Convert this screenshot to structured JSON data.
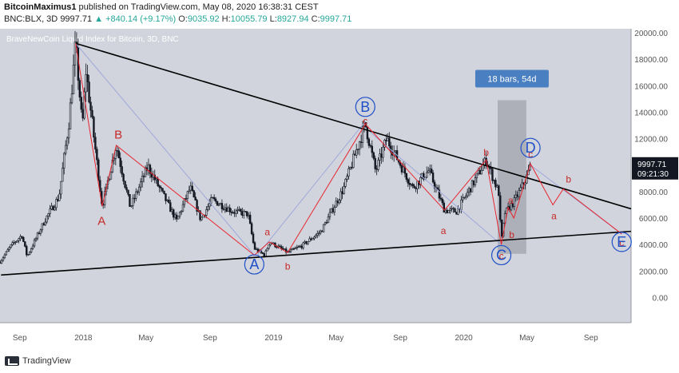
{
  "header": {
    "author": "BitcoinMaximus1",
    "published": "published on TradingView.com, May 08, 2020 16:38:31 CEST",
    "symbol": "BNC:BLX, 3D",
    "last": "9997.71",
    "change": "▲ +840.14 (+9.17%)",
    "o_label": "O:",
    "o_val": "9035.92",
    "h_label": "H:",
    "h_val": "10055.79",
    "l_label": "L:",
    "l_val": "8927.94",
    "c_label": "C:",
    "c_val": "9997.71"
  },
  "footer": {
    "brand": "TradingView",
    "logo_icon": "tradingview-logo-icon"
  },
  "colors": {
    "plot_bg": "#d1d4dc",
    "axis_bg": "#ffffff",
    "candle": "#131722",
    "wave": "#e8252f",
    "trendline": "#000000",
    "label_red": "#c62828",
    "label_blue": "#1e4fc7",
    "thin_line": "#9fa8da",
    "box_fill": "#9598a1",
    "badge_bg": "#4a7fc1",
    "last_price_bg": "#131722",
    "axis_text": "#555555"
  },
  "chart_data": {
    "type": "candlestick",
    "title": "BraveNewCoin Liquid Index for Bitcoin, 3D, BNC",
    "x_tick_labels": [
      "Sep",
      "2018",
      "May",
      "Sep",
      "2019",
      "May",
      "Sep",
      "2020",
      "May",
      "Sep"
    ],
    "x_ticks": [
      "2017-09-01",
      "2018-01-01",
      "2018-05-01",
      "2018-09-01",
      "2019-01-01",
      "2019-05-01",
      "2019-09-01",
      "2020-01-01",
      "2020-05-01",
      "2020-09-01"
    ],
    "xlim": [
      "2017-07-25",
      "2020-11-17"
    ],
    "y_ticks": [
      0,
      2000,
      4000,
      6000,
      8000,
      10000,
      12000,
      14000,
      16000,
      18000,
      20000
    ],
    "y_tick_labels": [
      "0.00",
      "2000.00",
      "4000.00",
      "6000.00",
      "8000.00",
      "10000.00",
      "12000.00",
      "14000.00",
      "16000.00",
      "18000.00",
      "20000.00"
    ],
    "ylim": [
      -1900,
      20300
    ],
    "price_path": [
      [
        "2017-07-25",
        2700
      ],
      [
        "2017-08-15",
        3900
      ],
      [
        "2017-09-05",
        4700
      ],
      [
        "2017-09-15",
        3100
      ],
      [
        "2017-10-20",
        5900
      ],
      [
        "2017-11-15",
        7600
      ],
      [
        "2017-12-05",
        13500
      ],
      [
        "2017-12-17",
        19200
      ],
      [
        "2017-12-30",
        12800
      ],
      [
        "2018-01-06",
        17100
      ],
      [
        "2018-02-06",
        6900
      ],
      [
        "2018-03-05",
        11500
      ],
      [
        "2018-04-01",
        6800
      ],
      [
        "2018-05-05",
        9900
      ],
      [
        "2018-06-29",
        5800
      ],
      [
        "2018-07-25",
        8300
      ],
      [
        "2018-08-14",
        5900
      ],
      [
        "2018-09-05",
        7400
      ],
      [
        "2018-10-15",
        6500
      ],
      [
        "2018-11-13",
        6300
      ],
      [
        "2018-11-25",
        3700
      ],
      [
        "2018-12-15",
        3200
      ],
      [
        "2018-12-24",
        4200
      ],
      [
        "2019-01-28",
        3400
      ],
      [
        "2019-02-24",
        3900
      ],
      [
        "2019-04-02",
        5000
      ],
      [
        "2019-05-15",
        8200
      ],
      [
        "2019-06-26",
        13100
      ],
      [
        "2019-07-16",
        9500
      ],
      [
        "2019-08-06",
        12000
      ],
      [
        "2019-09-25",
        8300
      ],
      [
        "2019-10-26",
        9600
      ],
      [
        "2019-11-25",
        6600
      ],
      [
        "2019-12-18",
        6500
      ],
      [
        "2020-01-20",
        8700
      ],
      [
        "2020-02-13",
        10400
      ],
      [
        "2020-03-08",
        7900
      ],
      [
        "2020-03-13",
        4200
      ],
      [
        "2020-03-20",
        6400
      ],
      [
        "2020-04-06",
        7200
      ],
      [
        "2020-04-30",
        9000
      ],
      [
        "2020-05-08",
        9997.71
      ]
    ],
    "trendlines": [
      {
        "from": [
          "2017-12-17",
          19200
        ],
        "to": [
          "2020-11-17",
          6700
        ]
      },
      {
        "from": [
          "2017-07-27",
          1700
        ],
        "to": [
          "2020-11-17",
          5000
        ]
      }
    ],
    "wave_path": [
      [
        "2017-12-17",
        19200
      ],
      [
        "2018-02-06",
        6900
      ],
      [
        "2018-03-05",
        11500
      ],
      [
        "2018-11-25",
        3200
      ],
      [
        "2018-12-24",
        4200
      ],
      [
        "2019-01-28",
        3400
      ],
      [
        "2019-06-26",
        13100
      ],
      [
        "2019-11-25",
        6600
      ],
      [
        "2020-02-13",
        10400
      ],
      [
        "2020-03-13",
        4000
      ],
      [
        "2020-03-26",
        6800
      ],
      [
        "2020-04-06",
        6000
      ],
      [
        "2020-05-08",
        10100
      ],
      [
        "2020-06-20",
        7000
      ],
      [
        "2020-07-10",
        8200
      ],
      [
        "2020-10-30",
        4800
      ]
    ],
    "thin_lines": [
      {
        "from": [
          "2017-12-17",
          19200
        ],
        "to": [
          "2018-11-25",
          3200
        ]
      },
      {
        "from": [
          "2018-12-01",
          3200
        ],
        "to": [
          "2019-06-26",
          13300
        ]
      },
      {
        "from": [
          "2019-07-05",
          12500
        ],
        "to": [
          "2020-03-13",
          4000
        ]
      },
      {
        "from": [
          "2020-05-08",
          10000
        ],
        "to": [
          "2020-10-30",
          4800
        ]
      }
    ],
    "range_box": {
      "from": "2020-03-06",
      "to": "2020-04-30",
      "ylim": [
        3300,
        14900
      ],
      "label": "18 bars, 54d"
    },
    "wave_labels_red": [
      {
        "text": "A",
        "at": [
          "2018-02-05",
          5800
        ]
      },
      {
        "text": "B",
        "at": [
          "2018-03-09",
          12300
        ]
      },
      {
        "text": "a",
        "at": [
          "2018-12-20",
          5000
        ]
      },
      {
        "text": "b",
        "at": [
          "2019-01-28",
          2400
        ]
      },
      {
        "text": "c",
        "at": [
          "2019-06-26",
          13400
        ]
      },
      {
        "text": "a",
        "at": [
          "2019-11-23",
          5100
        ]
      },
      {
        "text": "b",
        "at": [
          "2020-02-13",
          11000
        ]
      },
      {
        "text": "a",
        "at": [
          "2020-03-31",
          7400
        ]
      },
      {
        "text": "b",
        "at": [
          "2020-04-02",
          4800
        ]
      },
      {
        "text": "c",
        "at": [
          "2020-03-13",
          3200
        ]
      },
      {
        "text": "c",
        "at": [
          "2020-05-08",
          10900
        ]
      },
      {
        "text": "a",
        "at": [
          "2020-06-22",
          6200
        ]
      },
      {
        "text": "b",
        "at": [
          "2020-07-20",
          9000
        ]
      },
      {
        "text": "c",
        "at": [
          "2020-10-30",
          4200
        ]
      }
    ],
    "wave_labels_blue": [
      {
        "text": "A",
        "at": [
          "2018-11-25",
          2500
        ],
        "circle": true
      },
      {
        "text": "B",
        "at": [
          "2019-06-26",
          14400
        ],
        "circle": true
      },
      {
        "text": "C",
        "at": [
          "2020-03-13",
          3200
        ],
        "circle": true
      },
      {
        "text": "D",
        "at": [
          "2020-05-08",
          11300
        ],
        "circle": true
      },
      {
        "text": "E",
        "at": [
          "2020-10-30",
          4200
        ],
        "circle": true
      }
    ],
    "last_price": {
      "value": "9997.71",
      "countdown": "09:21:30"
    }
  }
}
